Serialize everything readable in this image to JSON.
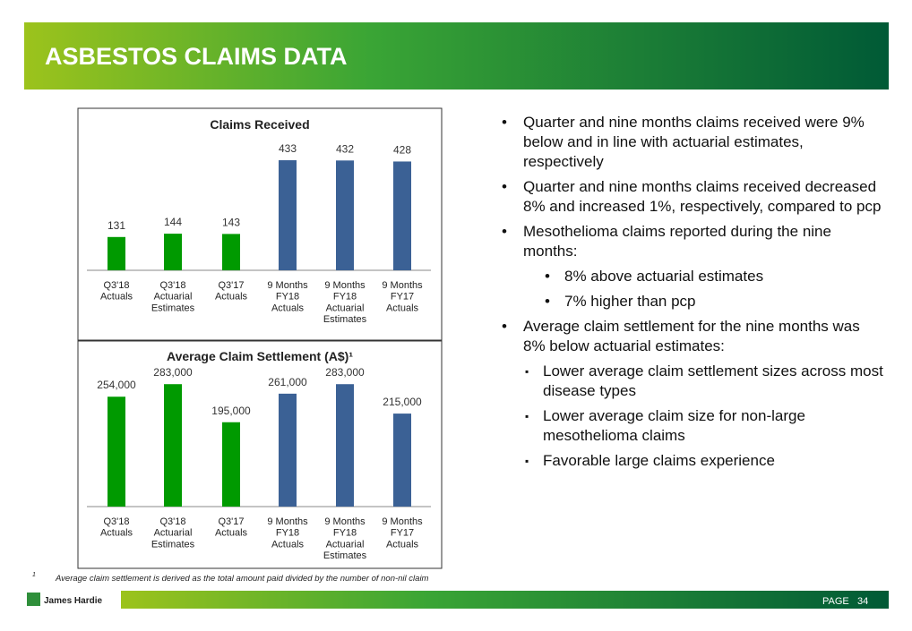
{
  "header": {
    "title": "ASBESTOS CLAIMS DATA"
  },
  "chart_data": [
    {
      "type": "bar",
      "title": "Claims Received",
      "categories": [
        "Q3'18\nActuals",
        "Q3'18\nActuarial\nEstimates",
        "Q3'17\nActuals",
        "9 Months\nFY18\nActuals",
        "9 Months\nFY18\nActuarial\nEstimates",
        "9 Months\nFY17\nActuals"
      ],
      "values": [
        131,
        144,
        143,
        433,
        432,
        428
      ],
      "colors": [
        "#009a00",
        "#009a00",
        "#009a00",
        "#3b6195",
        "#3b6195",
        "#3b6195"
      ],
      "ylim": [
        0,
        500
      ]
    },
    {
      "type": "bar",
      "title": "Average Claim Settlement (A$)¹",
      "categories": [
        "Q3'18\nActuals",
        "Q3'18\nActuarial\nEstimates",
        "Q3'17\nActuals",
        "9 Months\nFY18\nActuals",
        "9 Months\nFY18\nActuarial\nEstimates",
        "9 Months\nFY17\nActuals"
      ],
      "values": [
        254000,
        283000,
        195000,
        261000,
        283000,
        215000
      ],
      "value_labels": [
        "254,000",
        "283,000",
        "195,000",
        "261,000",
        "283,000",
        "215,000"
      ],
      "colors": [
        "#009a00",
        "#009a00",
        "#009a00",
        "#3b6195",
        "#3b6195",
        "#3b6195"
      ],
      "ylim": [
        0,
        300000
      ]
    }
  ],
  "bullets": [
    {
      "text": "Quarter and nine months claims received were 9% below and in line with actuarial estimates, respectively"
    },
    {
      "text": "Quarter and nine months claims received decreased 8% and increased 1%, respectively, compared to pcp"
    },
    {
      "text": "Mesothelioma claims reported during the nine months:",
      "sub": [
        "8% above actuarial estimates",
        "7% higher than pcp"
      ]
    },
    {
      "text": "Average claim settlement for the nine months was 8% below actuarial estimates:",
      "sub": [
        "Lower average claim settlement sizes across most disease types",
        "Lower average claim size for non-large mesothelioma claims",
        "Favorable large claims experience"
      ]
    }
  ],
  "footnote": {
    "marker": "1",
    "text": "Average claim settlement is derived as the total amount paid divided by the number of non-nil claim"
  },
  "footer": {
    "logo": "James Hardie",
    "page_label": "PAGE",
    "page_number": "34"
  }
}
